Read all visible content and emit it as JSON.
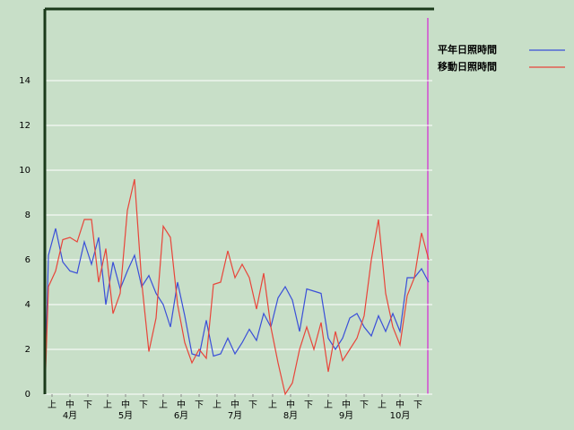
{
  "chart_data": {
    "type": "line",
    "x": [
      0,
      2,
      6,
      10,
      14,
      18,
      22,
      26,
      30,
      34,
      38,
      42,
      46,
      50,
      54,
      58,
      62,
      66,
      70,
      74,
      78,
      82,
      86,
      90,
      94,
      98,
      102,
      106,
      110,
      114,
      118,
      122,
      126,
      130,
      134,
      138,
      142,
      146,
      150,
      154,
      158,
      162,
      166,
      170,
      174,
      178,
      182,
      186,
      190,
      194,
      198,
      202,
      206,
      210,
      214
    ],
    "xlim": [
      0,
      214
    ],
    "xticks": [
      {
        "value": 4,
        "label": "上"
      },
      {
        "value": 14,
        "label": "中"
      },
      {
        "value": 24,
        "label": "下"
      },
      {
        "value": 35,
        "label": "上"
      },
      {
        "value": 45,
        "label": "中"
      },
      {
        "value": 55,
        "label": "下"
      },
      {
        "value": 66,
        "label": "上"
      },
      {
        "value": 76,
        "label": "中"
      },
      {
        "value": 86,
        "label": "下"
      },
      {
        "value": 96,
        "label": "上"
      },
      {
        "value": 106,
        "label": "中"
      },
      {
        "value": 116,
        "label": "下"
      },
      {
        "value": 127,
        "label": "上"
      },
      {
        "value": 137,
        "label": "中"
      },
      {
        "value": 147,
        "label": "下"
      },
      {
        "value": 158,
        "label": "上"
      },
      {
        "value": 168,
        "label": "中"
      },
      {
        "value": 178,
        "label": "下"
      },
      {
        "value": 188,
        "label": "上"
      },
      {
        "value": 198,
        "label": "中"
      },
      {
        "value": 208,
        "label": "下"
      }
    ],
    "month_ticks": [
      {
        "value": 14,
        "label": "4月"
      },
      {
        "value": 45,
        "label": "5月"
      },
      {
        "value": 76,
        "label": "6月"
      },
      {
        "value": 106,
        "label": "7月"
      },
      {
        "value": 137,
        "label": "8月"
      },
      {
        "value": 168,
        "label": "9月"
      },
      {
        "value": 198,
        "label": "10月"
      }
    ],
    "ylim": [
      0,
      17.2
    ],
    "yticks": [
      0,
      2,
      4,
      6,
      8,
      10,
      12,
      14
    ],
    "grid": true,
    "series": [
      {
        "name": "平年日照時間",
        "color": "#3a4fd8",
        "values": [
          0,
          6.2,
          7.4,
          5.9,
          5.5,
          5.4,
          6.8,
          5.8,
          7.0,
          4.0,
          5.9,
          4.7,
          5.5,
          6.2,
          4.8,
          5.3,
          4.5,
          4.0,
          3.0,
          5.0,
          3.5,
          1.8,
          1.7,
          3.3,
          1.7,
          1.8,
          2.5,
          1.8,
          2.3,
          2.9,
          2.4,
          3.6,
          3.0,
          4.3,
          4.8,
          4.2,
          2.8,
          4.7,
          4.6,
          4.5,
          2.5,
          2.0,
          2.5,
          3.4,
          3.6,
          3.0,
          2.6,
          3.5,
          2.8,
          3.6,
          2.8,
          5.2,
          5.2,
          5.6,
          5.0
        ]
      },
      {
        "name": "移動日照時間",
        "color": "#e8453a",
        "values": [
          0,
          4.8,
          5.5,
          6.9,
          7.0,
          6.8,
          7.8,
          7.8,
          5.0,
          6.5,
          3.6,
          4.5,
          8.2,
          9.6,
          5.0,
          1.9,
          3.4,
          7.5,
          7.0,
          4.0,
          2.3,
          1.4,
          2.0,
          1.6,
          4.9,
          5.0,
          6.4,
          5.2,
          5.8,
          5.2,
          3.8,
          5.4,
          3.0,
          1.4,
          0.0,
          0.5,
          2.0,
          3.0,
          2.0,
          3.2,
          1.0,
          2.8,
          1.5,
          2.0,
          2.5,
          3.5,
          6.0,
          7.8,
          4.5,
          3.0,
          2.2,
          4.4,
          5.2,
          7.2,
          6.0
        ]
      }
    ]
  }
}
